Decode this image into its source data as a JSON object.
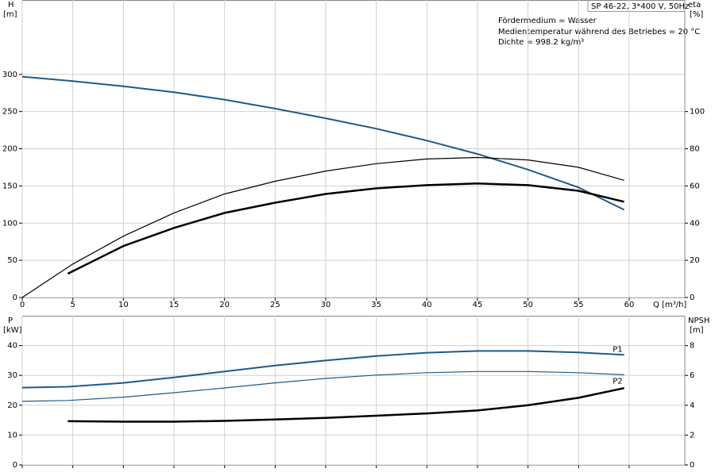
{
  "header": "SP 46-22, 3*400 V, 50Hz",
  "notes": [
    "Fördermedium = Wasser",
    "Medientemperatur während des Betriebes = 20 °C",
    "Dichte = 998.2 kg/m³"
  ],
  "chart_data": [
    {
      "type": "line",
      "ylabel": "H",
      "yunit": "[m]",
      "y2label": "eta",
      "y2unit": "[%]",
      "xlabel": "Q [m³/h]",
      "xlim": [
        0,
        65.5
      ],
      "xticks": [
        0,
        5,
        10,
        15,
        20,
        25,
        30,
        35,
        40,
        45,
        50,
        55,
        60
      ],
      "ylim": [
        0,
        400
      ],
      "yticks": [
        0,
        50,
        100,
        150,
        200,
        250,
        300
      ],
      "y2lim": [
        0,
        160
      ],
      "y2ticks": [
        0,
        20,
        40,
        60,
        80,
        100
      ],
      "grid": true,
      "series": [
        {
          "color": "#1f5a8a",
          "width": 2,
          "axis": "y",
          "x": [
            0,
            5,
            10,
            15,
            20,
            25,
            30,
            35,
            40,
            45,
            50,
            55,
            59.5
          ],
          "values": [
            297,
            291,
            284,
            276,
            266,
            254,
            241,
            227,
            211,
            193,
            172,
            148,
            118
          ]
        },
        {
          "color": "#000000",
          "width": 1.2,
          "axis": "y2",
          "x": [
            0,
            5,
            10,
            15,
            20,
            25,
            30,
            35,
            40,
            45,
            50,
            55,
            59.5
          ],
          "values": [
            0,
            18,
            33,
            45.5,
            55.7,
            62.5,
            68,
            72,
            74.5,
            75.3,
            74,
            70,
            63
          ]
        },
        {
          "color": "#000000",
          "width": 2.5,
          "axis": "y2",
          "x": [
            4.5,
            10,
            15,
            20,
            25,
            30,
            35,
            40,
            45,
            50,
            55,
            59.5
          ],
          "values": [
            12.8,
            27.7,
            37.4,
            45.5,
            51,
            55.7,
            58.7,
            60.4,
            61.3,
            60.4,
            57.4,
            51.5
          ]
        }
      ]
    },
    {
      "type": "line",
      "ylabel": "P",
      "yunit": "[kW]",
      "y2label": "NPSH",
      "y2unit": "[m]",
      "xlim": [
        0,
        65.5
      ],
      "xticks": [
        0,
        5,
        10,
        15,
        20,
        25,
        30,
        35,
        40,
        45,
        50,
        55,
        60
      ],
      "ylim": [
        0,
        50
      ],
      "yticks": [
        0,
        10,
        20,
        30,
        40
      ],
      "y2lim": [
        0,
        10
      ],
      "y2ticks": [
        0,
        2,
        4,
        6,
        8
      ],
      "grid": true,
      "series": [
        {
          "name": "P1",
          "color": "#1f5a8a",
          "width": 2,
          "axis": "y",
          "x": [
            0,
            4.5,
            10,
            15,
            20,
            25,
            30,
            35,
            40,
            45,
            50,
            55,
            59.5
          ],
          "values": [
            25.9,
            26.2,
            27.5,
            29.3,
            31.3,
            33.3,
            35,
            36.5,
            37.6,
            38.2,
            38.2,
            37.7,
            36.9
          ]
        },
        {
          "name": "P2",
          "color": "#1f5a8a",
          "width": 1.2,
          "axis": "y",
          "x": [
            0,
            4.5,
            10,
            15,
            20,
            25,
            30,
            35,
            40,
            45,
            50,
            55,
            59.5
          ],
          "values": [
            21.3,
            21.6,
            22.7,
            24.2,
            25.8,
            27.5,
            29,
            30.1,
            30.9,
            31.3,
            31.3,
            30.9,
            30.2
          ]
        },
        {
          "color": "#000000",
          "width": 2.5,
          "axis": "y2",
          "x": [
            4.5,
            10,
            15,
            20,
            25,
            30,
            35,
            40,
            45,
            50,
            55,
            59.5
          ],
          "values": [
            2.93,
            2.9,
            2.9,
            2.95,
            3.05,
            3.15,
            3.3,
            3.45,
            3.65,
            4.0,
            4.5,
            5.15
          ]
        }
      ]
    }
  ]
}
